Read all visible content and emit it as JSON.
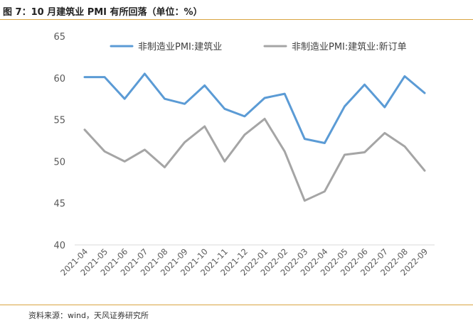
{
  "figure": {
    "title": "图 7：10 月建筑业 PMI 有所回落（单位：%）",
    "source": "资料来源：wind，天风证券研究所"
  },
  "chart_data": {
    "type": "line",
    "categories": [
      "2021-04",
      "2021-05",
      "2021-06",
      "2021-07",
      "2021-08",
      "2021-09",
      "2021-10",
      "2021-11",
      "2021-12",
      "2022-01",
      "2022-02",
      "2022-03",
      "2022-04",
      "2022-05",
      "2022-06",
      "2022-07",
      "2022-08",
      "2022-09"
    ],
    "series": [
      {
        "name": "非制造业PMI:建筑业",
        "color": "#5b9bd5",
        "values": [
          60.1,
          60.1,
          57.5,
          60.5,
          57.5,
          56.9,
          59.1,
          56.3,
          55.4,
          57.6,
          58.1,
          52.7,
          52.2,
          56.6,
          59.2,
          56.5,
          60.2,
          58.2
        ]
      },
      {
        "name": "非制造业PMI:建筑业:新订单",
        "color": "#a5a5a5",
        "values": [
          53.8,
          51.2,
          50.0,
          51.4,
          49.3,
          52.3,
          54.2,
          50.0,
          53.2,
          55.1,
          51.2,
          45.3,
          46.4,
          50.8,
          51.1,
          53.4,
          51.8,
          48.9
        ]
      }
    ],
    "ylim": [
      40,
      65
    ],
    "yticks": [
      40,
      45,
      50,
      55,
      60,
      65
    ],
    "xlabel": "",
    "ylabel": "",
    "grid": false,
    "legend_position": "top"
  }
}
